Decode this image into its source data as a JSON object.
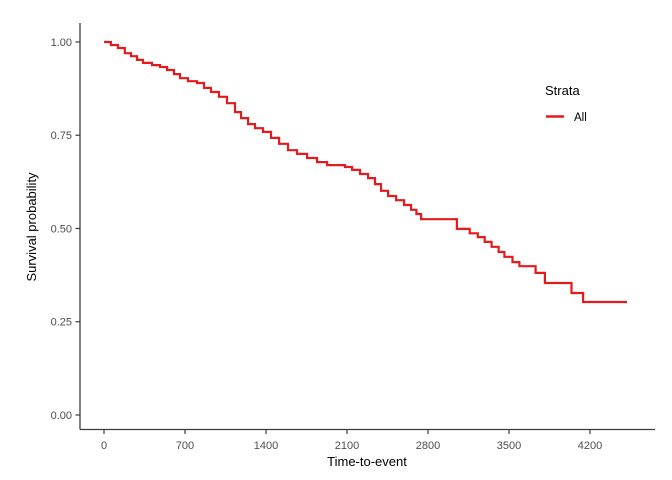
{
  "chart_data": {
    "type": "line",
    "subtype": "kaplan-meier-step",
    "title": "",
    "xlabel": "Time-to-event",
    "ylabel": "Survival probability",
    "x_ticks": [
      0,
      700,
      1400,
      2100,
      2800,
      3500,
      4200
    ],
    "y_ticks": [
      "0.00",
      "0.25",
      "0.50",
      "0.75",
      "1.00"
    ],
    "xlim": [
      -210,
      4760
    ],
    "ylim": [
      -0.04,
      1.05
    ],
    "grid": false,
    "legend": {
      "title": "Strata",
      "position": "right",
      "entries": [
        {
          "label": "All",
          "color": "#E41A1C"
        }
      ]
    },
    "series": [
      {
        "name": "All",
        "color": "#E41A1C",
        "end_time": 4520,
        "points": [
          [
            0,
            1.0
          ],
          [
            60,
            0.992
          ],
          [
            120,
            0.984
          ],
          [
            180,
            0.97
          ],
          [
            233,
            0.962
          ],
          [
            285,
            0.952
          ],
          [
            337,
            0.944
          ],
          [
            415,
            0.938
          ],
          [
            484,
            0.933
          ],
          [
            545,
            0.925
          ],
          [
            605,
            0.914
          ],
          [
            657,
            0.903
          ],
          [
            726,
            0.895
          ],
          [
            804,
            0.89
          ],
          [
            864,
            0.877
          ],
          [
            925,
            0.866
          ],
          [
            994,
            0.853
          ],
          [
            1063,
            0.836
          ],
          [
            1132,
            0.812
          ],
          [
            1184,
            0.796
          ],
          [
            1245,
            0.78
          ],
          [
            1305,
            0.769
          ],
          [
            1374,
            0.759
          ],
          [
            1443,
            0.743
          ],
          [
            1513,
            0.727
          ],
          [
            1590,
            0.71
          ],
          [
            1668,
            0.7
          ],
          [
            1755,
            0.689
          ],
          [
            1841,
            0.678
          ],
          [
            1928,
            0.67
          ],
          [
            2083,
            0.665
          ],
          [
            2144,
            0.657
          ],
          [
            2213,
            0.646
          ],
          [
            2282,
            0.635
          ],
          [
            2342,
            0.619
          ],
          [
            2394,
            0.601
          ],
          [
            2455,
            0.587
          ],
          [
            2524,
            0.576
          ],
          [
            2593,
            0.563
          ],
          [
            2654,
            0.55
          ],
          [
            2700,
            0.539
          ],
          [
            2740,
            0.525
          ],
          [
            3050,
            0.499
          ],
          [
            3160,
            0.487
          ],
          [
            3230,
            0.477
          ],
          [
            3290,
            0.464
          ],
          [
            3350,
            0.451
          ],
          [
            3410,
            0.437
          ],
          [
            3460,
            0.424
          ],
          [
            3530,
            0.41
          ],
          [
            3590,
            0.399
          ],
          [
            3730,
            0.381
          ],
          [
            3810,
            0.354
          ],
          [
            4040,
            0.327
          ],
          [
            4140,
            0.303
          ]
        ]
      }
    ]
  },
  "colors": {
    "curve": "#E41A1C",
    "axis_line": "#3c3c3c",
    "tick_label": "#4d4d4d",
    "background": "#ffffff"
  }
}
